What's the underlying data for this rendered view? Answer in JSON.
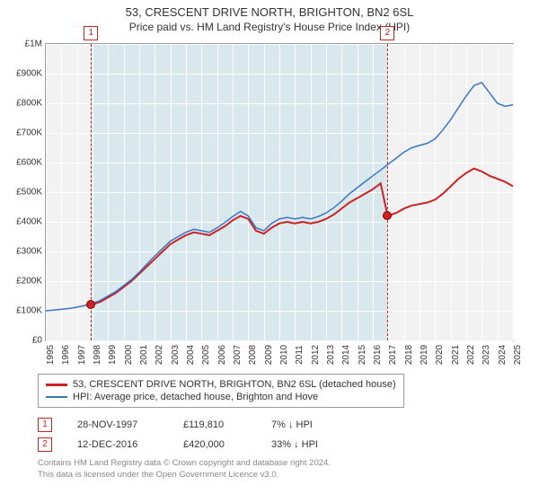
{
  "title": "53, CRESCENT DRIVE NORTH, BRIGHTON, BN2 6SL",
  "subtitle": "Price paid vs. HM Land Registry's House Price Index (HPI)",
  "chart": {
    "type": "line",
    "background_color": "#f2f2f2",
    "grid_color": "#ffffff",
    "border_color": "#999999",
    "x": {
      "min": 1995,
      "max": 2025,
      "ticks": [
        1995,
        1996,
        1997,
        1998,
        1999,
        2000,
        2001,
        2002,
        2003,
        2004,
        2005,
        2006,
        2007,
        2008,
        2009,
        2010,
        2011,
        2012,
        2013,
        2014,
        2015,
        2016,
        2017,
        2018,
        2019,
        2020,
        2021,
        2022,
        2023,
        2024,
        2025
      ]
    },
    "y": {
      "min": 0,
      "max": 1000000,
      "ticks": [
        0,
        100000,
        200000,
        300000,
        400000,
        500000,
        600000,
        700000,
        800000,
        900000,
        1000000
      ],
      "tick_labels": [
        "£0",
        "£100K",
        "£200K",
        "£300K",
        "£400K",
        "£500K",
        "£600K",
        "£700K",
        "£800K",
        "£900K",
        "£1M"
      ]
    },
    "band": {
      "start": 1997.9,
      "end": 2016.95,
      "color": "rgba(173,216,230,0.35)"
    },
    "series": [
      {
        "name": "property",
        "label": "53, CRESCENT DRIVE NORTH, BRIGHTON, BN2 6SL (detached house)",
        "color": "#cc2222",
        "width": 2,
        "data": [
          [
            1997.9,
            119810
          ],
          [
            1998.5,
            130000
          ],
          [
            1999,
            145000
          ],
          [
            1999.5,
            160000
          ],
          [
            2000,
            180000
          ],
          [
            2000.5,
            200000
          ],
          [
            2001,
            225000
          ],
          [
            2001.5,
            250000
          ],
          [
            2002,
            275000
          ],
          [
            2002.5,
            300000
          ],
          [
            2003,
            325000
          ],
          [
            2003.5,
            340000
          ],
          [
            2004,
            355000
          ],
          [
            2004.5,
            365000
          ],
          [
            2005,
            360000
          ],
          [
            2005.5,
            355000
          ],
          [
            2006,
            370000
          ],
          [
            2006.5,
            385000
          ],
          [
            2007,
            405000
          ],
          [
            2007.5,
            420000
          ],
          [
            2008,
            410000
          ],
          [
            2008.5,
            370000
          ],
          [
            2009,
            360000
          ],
          [
            2009.5,
            380000
          ],
          [
            2010,
            395000
          ],
          [
            2010.5,
            400000
          ],
          [
            2011,
            395000
          ],
          [
            2011.5,
            400000
          ],
          [
            2012,
            395000
          ],
          [
            2012.5,
            400000
          ],
          [
            2013,
            410000
          ],
          [
            2013.5,
            425000
          ],
          [
            2014,
            445000
          ],
          [
            2014.5,
            465000
          ],
          [
            2015,
            480000
          ],
          [
            2015.5,
            495000
          ],
          [
            2016,
            510000
          ],
          [
            2016.5,
            530000
          ],
          [
            2016.95,
            420000
          ],
          [
            2017.5,
            430000
          ],
          [
            2018,
            445000
          ],
          [
            2018.5,
            455000
          ],
          [
            2019,
            460000
          ],
          [
            2019.5,
            465000
          ],
          [
            2020,
            475000
          ],
          [
            2020.5,
            495000
          ],
          [
            2021,
            520000
          ],
          [
            2021.5,
            545000
          ],
          [
            2022,
            565000
          ],
          [
            2022.5,
            580000
          ],
          [
            2023,
            570000
          ],
          [
            2023.5,
            555000
          ],
          [
            2024,
            545000
          ],
          [
            2024.5,
            535000
          ],
          [
            2025,
            520000
          ]
        ]
      },
      {
        "name": "hpi",
        "label": "HPI: Average price, detached house, Brighton and Hove",
        "color": "#3a75c4",
        "width": 1.5,
        "data": [
          [
            1995,
            100000
          ],
          [
            1995.5,
            102000
          ],
          [
            1996,
            105000
          ],
          [
            1996.5,
            108000
          ],
          [
            1997,
            112000
          ],
          [
            1997.5,
            118000
          ],
          [
            1998,
            125000
          ],
          [
            1998.5,
            135000
          ],
          [
            1999,
            150000
          ],
          [
            1999.5,
            165000
          ],
          [
            2000,
            185000
          ],
          [
            2000.5,
            205000
          ],
          [
            2001,
            230000
          ],
          [
            2001.5,
            258000
          ],
          [
            2002,
            285000
          ],
          [
            2002.5,
            310000
          ],
          [
            2003,
            335000
          ],
          [
            2003.5,
            350000
          ],
          [
            2004,
            365000
          ],
          [
            2004.5,
            375000
          ],
          [
            2005,
            370000
          ],
          [
            2005.5,
            365000
          ],
          [
            2006,
            380000
          ],
          [
            2006.5,
            398000
          ],
          [
            2007,
            418000
          ],
          [
            2007.5,
            435000
          ],
          [
            2008,
            420000
          ],
          [
            2008.5,
            380000
          ],
          [
            2009,
            370000
          ],
          [
            2009.5,
            395000
          ],
          [
            2010,
            410000
          ],
          [
            2010.5,
            415000
          ],
          [
            2011,
            410000
          ],
          [
            2011.5,
            415000
          ],
          [
            2012,
            410000
          ],
          [
            2012.5,
            418000
          ],
          [
            2013,
            430000
          ],
          [
            2013.5,
            448000
          ],
          [
            2014,
            470000
          ],
          [
            2014.5,
            495000
          ],
          [
            2015,
            515000
          ],
          [
            2015.5,
            535000
          ],
          [
            2016,
            555000
          ],
          [
            2016.5,
            575000
          ],
          [
            2017,
            595000
          ],
          [
            2017.5,
            615000
          ],
          [
            2018,
            635000
          ],
          [
            2018.5,
            650000
          ],
          [
            2019,
            658000
          ],
          [
            2019.5,
            665000
          ],
          [
            2020,
            680000
          ],
          [
            2020.5,
            710000
          ],
          [
            2021,
            745000
          ],
          [
            2021.5,
            785000
          ],
          [
            2022,
            825000
          ],
          [
            2022.5,
            860000
          ],
          [
            2023,
            870000
          ],
          [
            2023.5,
            835000
          ],
          [
            2024,
            800000
          ],
          [
            2024.5,
            790000
          ],
          [
            2025,
            795000
          ]
        ]
      }
    ],
    "markers": [
      {
        "id": "1",
        "x": 1997.9,
        "point_y": 119810
      },
      {
        "id": "2",
        "x": 2016.95,
        "point_y": 420000
      }
    ]
  },
  "legend": {
    "items": [
      {
        "label": "53, CRESCENT DRIVE NORTH, BRIGHTON, BN2 6SL (detached house)",
        "color": "#cc2222"
      },
      {
        "label": "HPI: Average price, detached house, Brighton and Hove",
        "color": "#3a75c4"
      }
    ]
  },
  "data_rows": [
    {
      "marker": "1",
      "date": "28-NOV-1997",
      "price": "£119,810",
      "pct": "7% ↓ HPI"
    },
    {
      "marker": "2",
      "date": "12-DEC-2016",
      "price": "£420,000",
      "pct": "33% ↓ HPI"
    }
  ],
  "footer": {
    "line1": "Contains HM Land Registry data © Crown copyright and database right 2024.",
    "line2": "This data is licensed under the Open Government Licence v3.0."
  }
}
